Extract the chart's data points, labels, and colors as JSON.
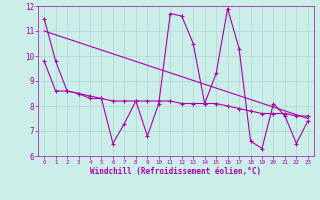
{
  "line1_x": [
    0,
    1,
    2,
    3,
    4,
    5,
    6,
    7,
    8,
    9,
    10,
    11,
    12,
    13,
    14,
    15,
    16,
    17,
    18,
    19,
    20,
    21,
    22,
    23
  ],
  "line1_y": [
    11.5,
    9.8,
    8.6,
    8.5,
    8.3,
    8.3,
    6.5,
    7.3,
    8.2,
    6.8,
    8.1,
    11.7,
    11.6,
    10.5,
    8.1,
    9.3,
    11.9,
    10.3,
    6.6,
    6.3,
    8.1,
    7.6,
    6.5,
    7.4
  ],
  "line2_x": [
    0,
    1,
    2,
    3,
    4,
    5,
    6,
    7,
    8,
    9,
    10,
    11,
    12,
    13,
    14,
    15,
    16,
    17,
    18,
    19,
    20,
    21,
    22,
    23
  ],
  "line2_y": [
    9.8,
    8.6,
    8.6,
    8.5,
    8.4,
    8.3,
    8.2,
    8.2,
    8.2,
    8.2,
    8.2,
    8.2,
    8.1,
    8.1,
    8.1,
    8.1,
    8.0,
    7.9,
    7.8,
    7.7,
    7.7,
    7.7,
    7.6,
    7.6
  ],
  "line3_x": [
    0,
    23
  ],
  "line3_y": [
    11.0,
    7.5
  ],
  "line_color": "#aa00aa",
  "bg_color": "#cceee8",
  "grid_color": "#aad8d0",
  "xlabel": "Windchill (Refroidissement éolien,°C)",
  "ylim": [
    6,
    12
  ],
  "xlim": [
    -0.5,
    23.5
  ],
  "yticks": [
    6,
    7,
    8,
    9,
    10,
    11,
    12
  ],
  "xticks": [
    0,
    1,
    2,
    3,
    4,
    5,
    6,
    7,
    8,
    9,
    10,
    11,
    12,
    13,
    14,
    15,
    16,
    17,
    18,
    19,
    20,
    21,
    22,
    23
  ]
}
